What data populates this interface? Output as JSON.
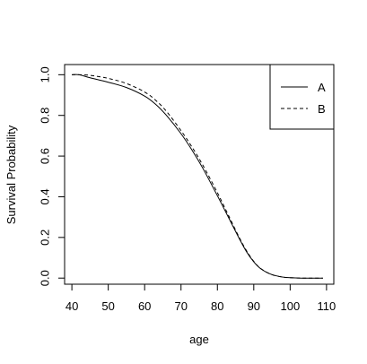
{
  "chart_data": {
    "type": "line",
    "xlabel": "age",
    "ylabel": "Survival Probability",
    "xlim": [
      38,
      112
    ],
    "ylim": [
      -0.03,
      1.05
    ],
    "xticks": [
      40,
      50,
      60,
      70,
      80,
      90,
      100,
      110
    ],
    "yticks": [
      0.0,
      0.2,
      0.4,
      0.6,
      0.8,
      1.0
    ],
    "ytick_labels": [
      "0.0",
      "0.2",
      "0.4",
      "0.6",
      "0.8",
      "1.0"
    ],
    "legend": {
      "placement": "top-right",
      "entries": [
        "A",
        "B"
      ]
    },
    "grid": false,
    "series": [
      {
        "name": "A",
        "line_style": "solid",
        "x": [
          40,
          42,
          45,
          50,
          55,
          60,
          63,
          66,
          70,
          73,
          76,
          80,
          83,
          86,
          88,
          90,
          92,
          95,
          98,
          100,
          103,
          106,
          109
        ],
        "y": [
          1.0,
          1.0,
          0.985,
          0.963,
          0.937,
          0.895,
          0.855,
          0.8,
          0.71,
          0.63,
          0.54,
          0.405,
          0.3,
          0.195,
          0.13,
          0.08,
          0.045,
          0.017,
          0.005,
          0.002,
          0.0,
          0.0,
          0.0
        ]
      },
      {
        "name": "B",
        "line_style": "dashed",
        "x": [
          40,
          42,
          45,
          50,
          55,
          60,
          63,
          66,
          70,
          73,
          76,
          80,
          83,
          86,
          88,
          90,
          92,
          95,
          98,
          100,
          103,
          106,
          109
        ],
        "y": [
          1.0,
          1.0,
          0.997,
          0.982,
          0.957,
          0.915,
          0.875,
          0.82,
          0.725,
          0.645,
          0.555,
          0.42,
          0.31,
          0.2,
          0.135,
          0.082,
          0.046,
          0.017,
          0.005,
          0.002,
          0.0,
          0.0,
          0.0
        ]
      }
    ]
  }
}
